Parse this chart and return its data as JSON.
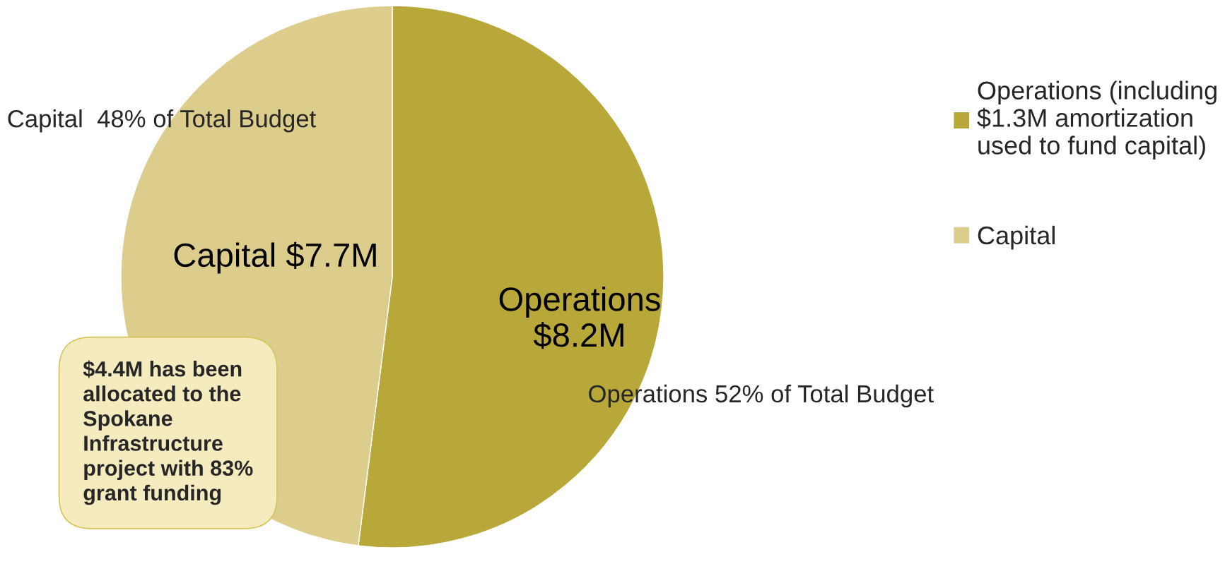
{
  "chart_data": {
    "type": "pie",
    "categories": [
      "Operations (including\n$1.3M amortization\nused to fund capital)",
      "Capital"
    ],
    "values": [
      52,
      48
    ],
    "colors": [
      "#b8a83a",
      "#dccd8c"
    ],
    "value_labels": [
      "Operations\n$8.2M",
      "Capital $7.7M"
    ],
    "annotations": [
      "Capital  48% of Total Budget",
      "Operations 52% of Total Budget",
      "$4.4M has been\nallocated to the\nSpokane\nInfrastructure\nproject with 83%\ngrant funding"
    ],
    "legend": "right"
  }
}
